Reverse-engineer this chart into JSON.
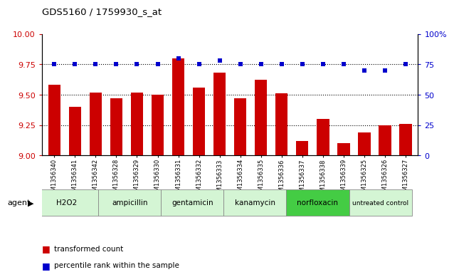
{
  "title": "GDS5160 / 1759930_s_at",
  "samples": [
    "GSM1356340",
    "GSM1356341",
    "GSM1356342",
    "GSM1356328",
    "GSM1356329",
    "GSM1356330",
    "GSM1356331",
    "GSM1356332",
    "GSM1356333",
    "GSM1356334",
    "GSM1356335",
    "GSM1356336",
    "GSM1356337",
    "GSM1356338",
    "GSM1356339",
    "GSM1356325",
    "GSM1356326",
    "GSM1356327"
  ],
  "bar_values": [
    9.58,
    9.4,
    9.52,
    9.47,
    9.52,
    9.5,
    9.8,
    9.56,
    9.68,
    9.47,
    9.62,
    9.51,
    9.12,
    9.3,
    9.1,
    9.19,
    9.25,
    9.26
  ],
  "percentile_values": [
    75,
    75,
    75,
    75,
    75,
    75,
    80,
    75,
    78,
    75,
    75,
    75,
    75,
    75,
    75,
    70,
    70,
    75
  ],
  "groups": [
    {
      "name": "H2O2",
      "start": 0,
      "end": 2,
      "color": "#d4f5d4"
    },
    {
      "name": "ampicillin",
      "start": 3,
      "end": 5,
      "color": "#d4f5d4"
    },
    {
      "name": "gentamicin",
      "start": 6,
      "end": 8,
      "color": "#d4f5d4"
    },
    {
      "name": "kanamycin",
      "start": 9,
      "end": 11,
      "color": "#d4f5d4"
    },
    {
      "name": "norfloxacin",
      "start": 12,
      "end": 14,
      "color": "#44cc44"
    },
    {
      "name": "untreated control",
      "start": 15,
      "end": 17,
      "color": "#d4f5d4"
    }
  ],
  "bar_color": "#cc0000",
  "percentile_color": "#0000cc",
  "ylim_left": [
    9.0,
    10.0
  ],
  "ylim_right": [
    0,
    100
  ],
  "yticks_left": [
    9.0,
    9.25,
    9.5,
    9.75,
    10.0
  ],
  "yticks_right": [
    0,
    25,
    50,
    75,
    100
  ],
  "grid_values": [
    9.25,
    9.5,
    9.75
  ],
  "legend_items": [
    {
      "label": "transformed count",
      "color": "#cc0000"
    },
    {
      "label": "percentile rank within the sample",
      "color": "#0000cc"
    }
  ],
  "agent_label": "agent",
  "background_color": "#ffffff",
  "plot_bg_color": "#ffffff"
}
